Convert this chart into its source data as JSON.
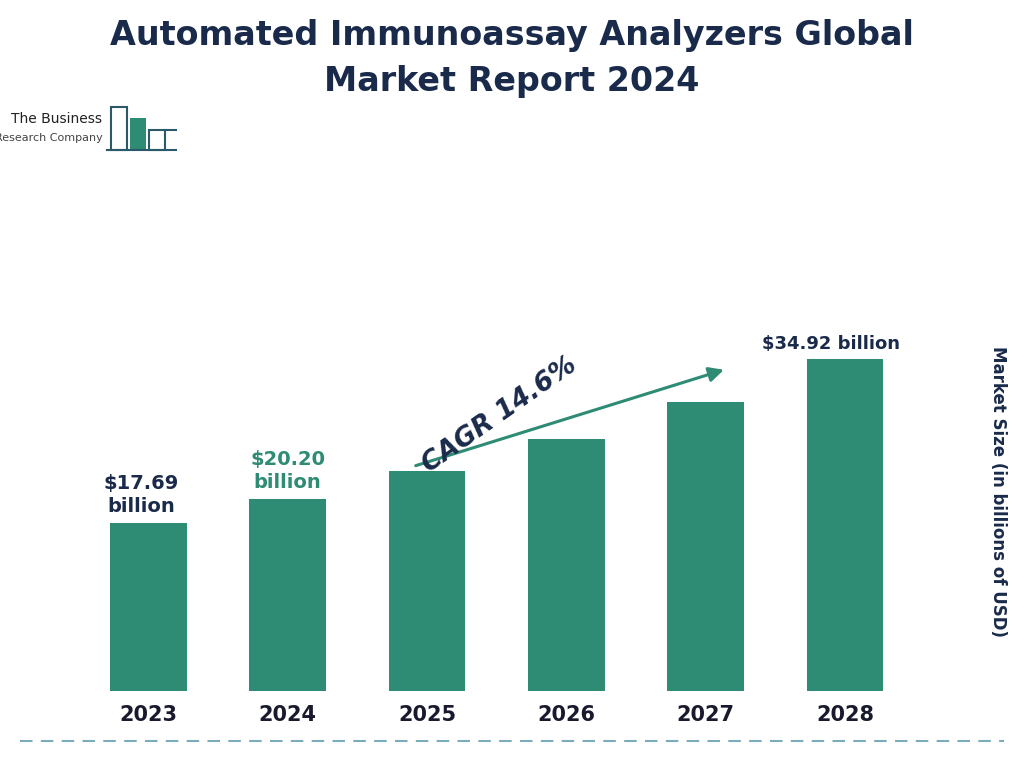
{
  "title_line1": "Automated Immunoassay Analyzers Global",
  "title_line2": "Market Report 2024",
  "years": [
    "2023",
    "2024",
    "2025",
    "2026",
    "2027",
    "2028"
  ],
  "values": [
    17.69,
    20.2,
    23.13,
    26.51,
    30.39,
    34.92
  ],
  "bar_color": "#2e8b74",
  "background_color": "#ffffff",
  "label_2023": "$17.69\nbillion",
  "label_2024": "$20.20\nbillion",
  "label_2028": "$34.92 billion",
  "label_2023_color": "#1a2a4a",
  "label_2024_color": "#2e8b74",
  "label_2028_color": "#1a2a4a",
  "ylabel": "Market Size (in billions of USD)",
  "cagr_text": "CAGR 14.6%",
  "cagr_color": "#1a2a4a",
  "arrow_color": "#2e8b74",
  "title_color": "#1a2a4a",
  "tick_label_color": "#1a1a2e",
  "dashed_line_color": "#7aacbc",
  "ylabel_color": "#1a2a4a",
  "logo_text1": "The Business",
  "logo_text2": "Research Company",
  "logo_bar_colors": [
    "#2a5a6a",
    "#2e8b74",
    "#2a5a6a"
  ],
  "logo_outline_color": "#2a5a6a"
}
